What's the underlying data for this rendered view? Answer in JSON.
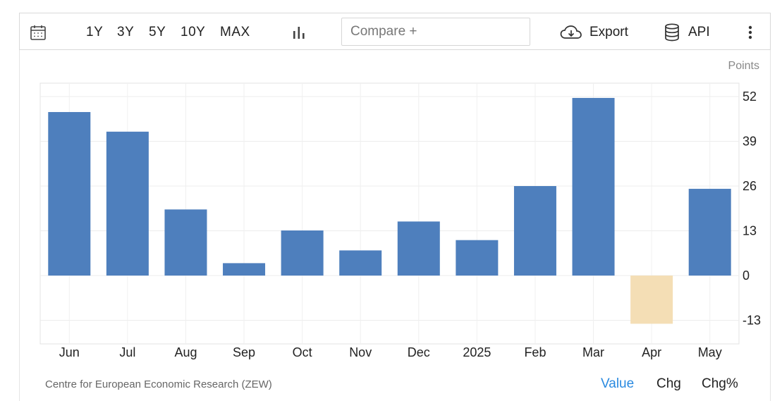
{
  "toolbar": {
    "calendar_icon": "calendar-icon",
    "ranges": [
      "1Y",
      "3Y",
      "5Y",
      "10Y",
      "MAX"
    ],
    "chart_type_icon": "bar-chart-icon",
    "compare_placeholder": "Compare +",
    "export_label": "Export",
    "export_icon": "cloud-download-icon",
    "api_label": "API",
    "api_icon": "database-icon",
    "more_icon": "more-vertical-icon"
  },
  "chart_data": {
    "type": "bar",
    "units": "Points",
    "categories": [
      "Jun",
      "Jul",
      "Aug",
      "Sep",
      "Oct",
      "Nov",
      "Dec",
      "2025",
      "Feb",
      "Mar",
      "Apr",
      "May"
    ],
    "values": [
      47.5,
      41.8,
      19.2,
      3.6,
      13.1,
      7.3,
      15.7,
      10.3,
      26.0,
      51.6,
      -14.0,
      25.2
    ],
    "ylim": [
      -20,
      52
    ],
    "yticks": [
      52,
      39,
      26,
      13,
      0,
      -13
    ],
    "grid": true,
    "colors": {
      "positive": "#4e7fbd",
      "negative": "#f4deb5"
    }
  },
  "footer": {
    "source": "Centre for European Economic Research (ZEW)",
    "modes": [
      "Value",
      "Chg",
      "Chg%"
    ],
    "active_mode_color": "#2a8ae0"
  }
}
